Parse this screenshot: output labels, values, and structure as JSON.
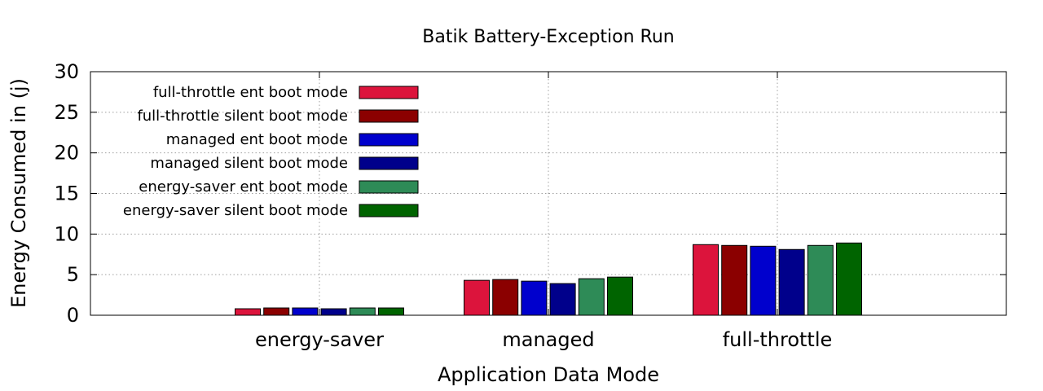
{
  "chart_data": {
    "type": "bar",
    "title": "Batik Battery-Exception Run",
    "xlabel": "Application Data Mode",
    "ylabel": "Energy Consumed in (j)",
    "ylim": [
      0,
      30
    ],
    "yticks": [
      0,
      5,
      10,
      15,
      20,
      25,
      30
    ],
    "grid": true,
    "legend_position": "top-left",
    "categories": [
      "energy-saver",
      "managed",
      "full-throttle"
    ],
    "series": [
      {
        "name": "full-throttle ent boot mode",
        "color": "#dc143c",
        "values": [
          0.8,
          4.3,
          8.7
        ]
      },
      {
        "name": "full-throttle silent boot mode",
        "color": "#8b0000",
        "values": [
          0.9,
          4.4,
          8.6
        ]
      },
      {
        "name": "managed ent boot mode",
        "color": "#0000cd",
        "values": [
          0.9,
          4.2,
          8.5
        ]
      },
      {
        "name": "managed silent  boot mode",
        "color": "#00008b",
        "values": [
          0.8,
          3.9,
          8.1
        ]
      },
      {
        "name": "energy-saver ent boot mode",
        "color": "#2e8b57",
        "values": [
          0.9,
          4.5,
          8.6
        ]
      },
      {
        "name": "energy-saver silent boot mode",
        "color": "#006400",
        "values": [
          0.9,
          4.7,
          8.9
        ]
      }
    ]
  }
}
